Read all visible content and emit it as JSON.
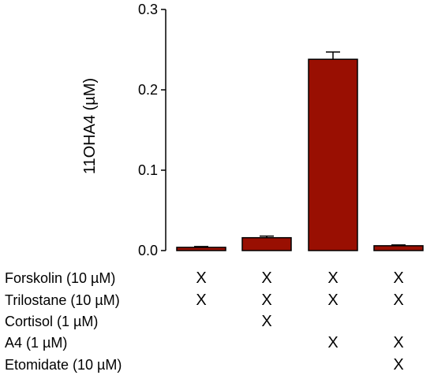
{
  "chart_data": {
    "type": "bar",
    "ylabel": "11OHA4 (µM)",
    "ylim": [
      0,
      0.3
    ],
    "yticks": [
      "0.0",
      "0.1",
      "0.2",
      "0.3"
    ],
    "ytick_values": [
      0,
      0.1,
      0.2,
      0.3
    ],
    "values": [
      0.004,
      0.016,
      0.238,
      0.006
    ],
    "errors": [
      0.001,
      0.002,
      0.009,
      0.001
    ],
    "bar_color": "#990f02",
    "grid": false,
    "conditions": [
      {
        "label": "Forskolin (10 µM)",
        "marks": [
          "X",
          "X",
          "X",
          "X"
        ]
      },
      {
        "label": "Trilostane (10 µM)",
        "marks": [
          "X",
          "X",
          "X",
          "X"
        ]
      },
      {
        "label": "Cortisol (1 µM)",
        "marks": [
          "",
          "X",
          "",
          ""
        ]
      },
      {
        "label": "A4 (1 µM)",
        "marks": [
          "",
          "",
          "X",
          "X"
        ]
      },
      {
        "label": "Etomidate (10 µM)",
        "marks": [
          "",
          "",
          "",
          "X"
        ]
      }
    ]
  }
}
